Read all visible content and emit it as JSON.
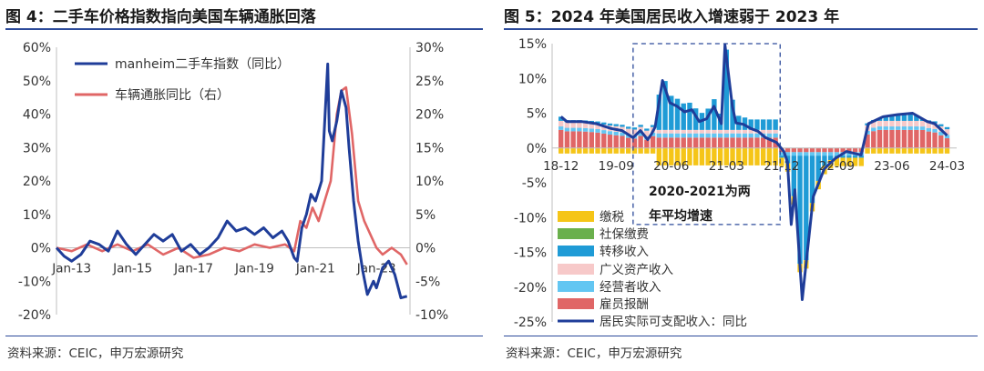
{
  "left": {
    "title": "图 4：二手车价格指数指向美国车辆通胀回落",
    "source": "资料来源：CEIC，申万宏源研究"
  },
  "right": {
    "title": "图 5：2024 年美国居民收入增速弱于 2023 年",
    "source": "资料来源：CEIC，申万宏源研究"
  },
  "colors": {
    "rule": "#2c4a9a"
  },
  "chart_data": [
    {
      "type": "line",
      "title": "",
      "y_left": {
        "range": [
          -20,
          60
        ],
        "step": 10,
        "unit": "%"
      },
      "y_right": {
        "range": [
          -10,
          30
        ],
        "step": 5,
        "unit": "%"
      },
      "x_range": [
        2012.5,
        2024.1
      ],
      "x_ticks": [
        {
          "x": 2013,
          "label": "Jan-13"
        },
        {
          "x": 2015,
          "label": "Jan-15"
        },
        {
          "x": 2017,
          "label": "Jan-17"
        },
        {
          "x": 2019,
          "label": "Jan-19"
        },
        {
          "x": 2021,
          "label": "Jan-21"
        },
        {
          "x": 2023,
          "label": "Jan-23"
        }
      ],
      "grid": false,
      "legend": "top-left",
      "series": [
        {
          "name": "manheim二手车指数（同比）",
          "axis": "left",
          "color": "#1f3d99",
          "x": [
            2012.5,
            2012.75,
            2013.0,
            2013.3,
            2013.6,
            2013.9,
            2014.2,
            2014.5,
            2014.8,
            2015.1,
            2015.4,
            2015.7,
            2016.0,
            2016.3,
            2016.6,
            2016.9,
            2017.2,
            2017.5,
            2017.8,
            2018.1,
            2018.4,
            2018.7,
            2019.0,
            2019.3,
            2019.6,
            2019.9,
            2020.1,
            2020.3,
            2020.4,
            2020.55,
            2020.7,
            2020.85,
            2021.0,
            2021.2,
            2021.4,
            2021.45,
            2021.55,
            2021.7,
            2021.85,
            2022.0,
            2022.1,
            2022.25,
            2022.4,
            2022.55,
            2022.7,
            2022.9,
            2023.0,
            2023.2,
            2023.4,
            2023.6,
            2023.8,
            2024.0
          ],
          "values": [
            0,
            -2.5,
            -4,
            -2,
            2,
            1,
            -1,
            5,
            1,
            -2,
            1,
            4,
            2,
            4,
            -1,
            1,
            -2,
            0,
            3,
            8,
            5,
            6,
            4,
            6,
            3,
            5,
            2,
            -3,
            -4,
            6,
            10,
            16,
            14,
            20,
            55,
            35,
            32,
            38,
            47,
            42,
            30,
            14,
            2,
            -7,
            -14,
            -10,
            -12,
            -6,
            -4,
            -8,
            -15,
            -14.5
          ]
        },
        {
          "name": "车辆通胀同比（右）",
          "axis": "right",
          "color": "#e06666",
          "x": [
            2012.5,
            2013.0,
            2013.5,
            2014.0,
            2014.5,
            2015.0,
            2015.5,
            2016.0,
            2016.5,
            2017.0,
            2017.5,
            2018.0,
            2018.5,
            2019.0,
            2019.5,
            2020.0,
            2020.3,
            2020.5,
            2020.7,
            2020.9,
            2021.1,
            2021.3,
            2021.5,
            2021.7,
            2021.85,
            2022.0,
            2022.2,
            2022.4,
            2022.6,
            2022.8,
            2023.0,
            2023.2,
            2023.5,
            2023.8,
            2024.0
          ],
          "values": [
            0,
            -0.5,
            0.5,
            -0.5,
            0.5,
            -0.5,
            0.5,
            -1,
            0,
            -1.5,
            -1,
            0,
            -0.5,
            0.5,
            0,
            0.5,
            -0.5,
            4,
            3,
            6,
            4,
            7,
            10,
            20,
            23.5,
            24,
            17,
            7,
            4,
            2,
            0,
            -1,
            0,
            -1,
            -2.5
          ]
        }
      ]
    },
    {
      "type": "bar",
      "stacked": true,
      "title": "",
      "y_range": [
        -25,
        15
      ],
      "y_step": 5,
      "y_unit": "%",
      "x_range": [
        2018.8,
        2024.3
      ],
      "x_ticks": [
        {
          "x": 2018.92,
          "label": "18-12"
        },
        {
          "x": 2019.67,
          "label": "19-09"
        },
        {
          "x": 2020.42,
          "label": "20-06"
        },
        {
          "x": 2021.17,
          "label": "21-03"
        },
        {
          "x": 2021.92,
          "label": "21-12"
        },
        {
          "x": 2022.67,
          "label": "22-09"
        },
        {
          "x": 2023.42,
          "label": "23-06"
        },
        {
          "x": 2024.17,
          "label": "24-03"
        }
      ],
      "annotation": {
        "text_line1": "2020-2021为两",
        "text_line2": "年平均增速",
        "x_span": [
          2020.0,
          2021.9
        ],
        "y_span": [
          -11,
          15
        ]
      },
      "legend": "bottom-left",
      "components": [
        {
          "name": "缴税",
          "color": "#f5c518"
        },
        {
          "name": "社保缴费",
          "color": "#6ab04c"
        },
        {
          "name": "转移收入",
          "color": "#1f9bd6"
        },
        {
          "name": "广义资产收入",
          "color": "#f7c9c9"
        },
        {
          "name": "经营者收入",
          "color": "#63c6f2"
        },
        {
          "name": "雇员报酬",
          "color": "#e06666"
        }
      ],
      "line": {
        "name": "居民实际可支配收入：同比",
        "color": "#1f3d99",
        "x": [
          2018.92,
          2019.0,
          2019.2,
          2019.4,
          2019.6,
          2019.75,
          2019.9,
          2020.0,
          2020.1,
          2020.15,
          2020.2,
          2020.3,
          2020.4,
          2020.5,
          2020.6,
          2020.7,
          2020.8,
          2020.9,
          2021.0,
          2021.1,
          2021.15,
          2021.25,
          2021.3,
          2021.4,
          2021.5,
          2021.6,
          2021.7,
          2021.85,
          2021.95,
          2022.0,
          2022.05,
          2022.1,
          2022.2,
          2022.35,
          2022.5,
          2022.65,
          2022.8,
          2023.0,
          2023.1,
          2023.3,
          2023.5,
          2023.7,
          2023.9,
          2024.0,
          2024.17
        ],
        "values": [
          4.5,
          3.8,
          3.8,
          3.5,
          2.8,
          2.5,
          1.5,
          2.5,
          1.2,
          2.0,
          3.0,
          9.7,
          6.5,
          6.0,
          5.2,
          5.5,
          3.8,
          4.2,
          6.0,
          3.5,
          14.8,
          6.0,
          3.6,
          3.4,
          2.8,
          2.4,
          1.5,
          0.8,
          -0.5,
          -2.0,
          -11.0,
          -6.0,
          -21.8,
          -7.0,
          -3.0,
          -1.5,
          -0.5,
          -1.0,
          3.5,
          4.5,
          4.8,
          5.0,
          3.8,
          3.5,
          1.8
        ]
      }
    }
  ]
}
